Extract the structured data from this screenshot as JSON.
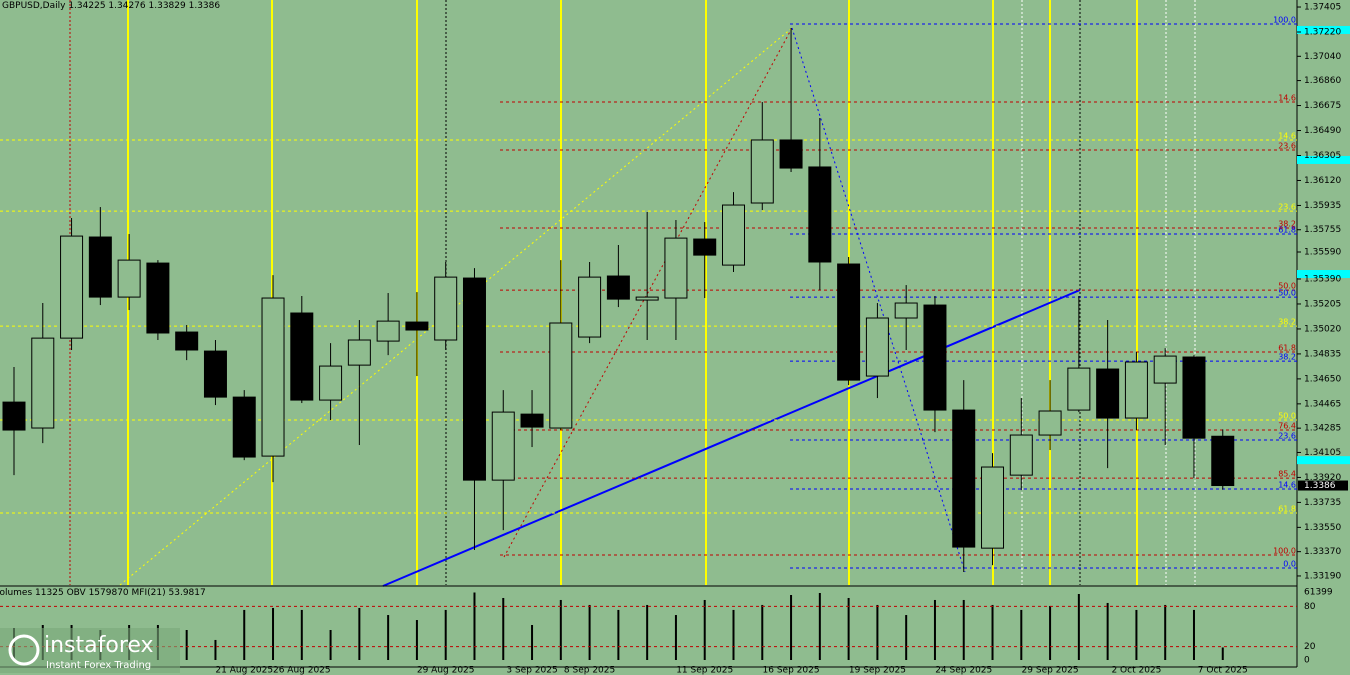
{
  "chart_data": {
    "type": "candlestick",
    "symbol": "GBPUSD,Daily",
    "categories": [
      null,
      null,
      null,
      null,
      null,
      null,
      null,
      null,
      "21 Aug 2025",
      null,
      "26 Aug 2025",
      null,
      null,
      null,
      null,
      "29 Aug 2025",
      null,
      null,
      "3 Sep 2025",
      null,
      "8 Sep 2025",
      null,
      null,
      null,
      "11 Sep 2025",
      null,
      null,
      "16 Sep 2025",
      null,
      null,
      "19 Sep 2025",
      null,
      null,
      "24 Sep 2025",
      null,
      null,
      "29 Sep 2025",
      null,
      null,
      "2 Oct 2025",
      null,
      null,
      "7 Oct 2025"
    ],
    "open": [
      1.34478,
      1.34286,
      1.34952,
      1.35701,
      1.35256,
      1.35508,
      1.34997,
      1.34856,
      1.34515,
      1.34078,
      1.35138,
      1.34493,
      1.34752,
      1.3493,
      1.35071,
      1.34938,
      1.35397,
      1.339,
      1.34389,
      1.34286,
      1.3496,
      1.35412,
      1.35234,
      1.35249,
      1.35686,
      1.35493,
      1.35953,
      1.3642,
      1.3622,
      1.35501,
      1.34671,
      1.35101,
      1.35197,
      1.34419,
      1.33396,
      1.33937,
      1.34234,
      1.34419,
      1.34723,
      1.3436,
      1.34619,
      1.34812,
      1.34225
    ],
    "high": [
      1.34738,
      1.35212,
      1.35842,
      1.35923,
      1.35723,
      1.3553,
      1.35049,
      1.34938,
      1.34567,
      1.35419,
      1.35264,
      1.34915,
      1.35086,
      1.35286,
      1.35293,
      1.35516,
      1.35471,
      1.34567,
      1.34567,
      1.3553,
      1.35516,
      1.35642,
      1.35886,
      1.35827,
      1.35812,
      1.36034,
      1.36701,
      1.3725,
      1.36583,
      1.35553,
      1.35212,
      1.35345,
      1.35264,
      1.34641,
      1.341,
      1.34508,
      1.34641,
      1.35264,
      1.35086,
      1.34849,
      1.34878,
      1.34826,
      1.34276
    ],
    "low": [
      1.33937,
      1.34174,
      1.34864,
      1.35197,
      1.3516,
      1.34938,
      1.34789,
      1.34456,
      1.34048,
      1.33885,
      1.34471,
      1.34345,
      1.3416,
      1.34826,
      1.34671,
      1.34864,
      1.33382,
      1.3353,
      1.34145,
      1.34271,
      1.34915,
      1.35182,
      1.34938,
      1.34938,
      1.35249,
      1.35442,
      1.35901,
      1.36183,
      1.35308,
      1.34604,
      1.34508,
      1.34864,
      1.34256,
      1.33219,
      1.3327,
      1.33826,
      1.34123,
      1.34404,
      1.33989,
      1.34271,
      1.3416,
      1.33915,
      1.33829
    ],
    "close": [
      1.34271,
      1.34952,
      1.35708,
      1.35256,
      1.3553,
      1.3499,
      1.34864,
      1.34515,
      1.34071,
      1.35249,
      1.34493,
      1.34745,
      1.34938,
      1.35078,
      1.35012,
      1.35404,
      1.339,
      1.34404,
      1.34293,
      1.35064,
      1.35404,
      1.35241,
      1.35256,
      1.35693,
      1.35567,
      1.35938,
      1.3642,
      1.36212,
      1.35516,
      1.34641,
      1.35101,
      1.35212,
      1.34419,
      1.33404,
      1.33997,
      1.34234,
      1.34412,
      1.3473,
      1.3436,
      1.34775,
      1.34819,
      1.34211,
      1.3386
    ],
    "ylim": [
      1.33123,
      1.37457
    ],
    "yticks": [
      1.37405,
      {
        "value": 1.3722,
        "label": "1.37220"
      },
      {
        "value": 1.3704,
        "label": "1.37040"
      },
      {
        "value": 1.3686,
        "label": "1.36860"
      },
      1.36675,
      {
        "value": 1.3649,
        "label": "1.36490"
      },
      1.36305,
      {
        "value": 1.3612,
        "label": "1.36120"
      },
      1.35935,
      1.35755,
      {
        "value": 1.3559,
        "label": "1.35590"
      },
      {
        "value": 1.3539,
        "label": "1.35390"
      },
      1.35205,
      {
        "value": 1.3502,
        "label": "1.35020"
      },
      1.34835,
      {
        "value": 1.3465,
        "label": "1.34650"
      },
      1.34465,
      1.34285,
      1.34105,
      {
        "value": 1.3392,
        "label": "1.33920"
      },
      1.33735,
      {
        "value": 1.3355,
        "label": "1.33550"
      },
      {
        "value": 1.3337,
        "label": "1.33370"
      },
      {
        "value": 1.3319,
        "label": "1.33190"
      }
    ],
    "alert_levels": [
      1.37235,
      1.36272,
      1.35427,
      1.34048
    ],
    "bull_color": "#8fbc8f",
    "bear_color": "#000000",
    "fib_levels": [
      {
        "label": "100.0",
        "value": 1.37279,
        "color": "#0000ff"
      },
      {
        "label": "14.6",
        "value": 1.36701,
        "color": "#c00000"
      },
      {
        "label": "14.6",
        "value": 1.3642,
        "color": "#ffff00"
      },
      {
        "label": "23.6",
        "value": 1.36346,
        "color": "#c00000"
      },
      {
        "label": "23.6",
        "value": 1.35893,
        "color": "#ffff00"
      },
      {
        "label": "38.2",
        "value": 1.35768,
        "color": "#c00000"
      },
      {
        "label": "61.8",
        "value": 1.35723,
        "color": "#0000ff"
      },
      {
        "label": "50.0",
        "value": 1.35308,
        "color": "#c00000"
      },
      {
        "label": "50.0",
        "value": 1.35256,
        "color": "#0000ff"
      },
      {
        "label": "38.2",
        "value": 1.35041,
        "color": "#ffff00"
      },
      {
        "label": "61.8",
        "value": 1.34849,
        "color": "#c00000"
      },
      {
        "label": "38.2",
        "value": 1.34782,
        "color": "#0000ff"
      },
      {
        "label": "50.0",
        "value": 1.34345,
        "color": "#ffff00"
      },
      {
        "label": "76.4",
        "value": 1.34271,
        "color": "#c00000"
      },
      {
        "label": "23.6",
        "value": 1.34197,
        "color": "#0000ff"
      },
      {
        "label": "85.4",
        "value": 1.33915,
        "color": "#c00000"
      },
      {
        "label": "14.6",
        "value": 1.33834,
        "color": "#0000ff"
      },
      {
        "label": "61.8",
        "value": 1.33656,
        "color": "#ffff00"
      },
      {
        "label": "100.0",
        "value": 1.33345,
        "color": "#c00000"
      },
      {
        "label": "0.0",
        "value": 1.33249,
        "color": "#0000ff"
      }
    ],
    "volume": {
      "label": "Volumes",
      "values": [
        28900,
        31600,
        31600,
        27100,
        31600,
        31600,
        27100,
        18100,
        45200,
        47000,
        45200,
        27100,
        47000,
        40600,
        36100,
        45200,
        61000,
        56000,
        31600,
        54200,
        49700,
        45200,
        49700,
        40600,
        54200,
        45200,
        49700,
        58700,
        60500,
        56000,
        49700,
        40600,
        54200,
        54200,
        49700,
        45200,
        48800,
        59600,
        51500,
        45200,
        49700,
        45200,
        11325
      ],
      "ylim": [
        0,
        61399
      ],
      "yticks": [
        61399
      ]
    },
    "obv": {
      "label": "OBV",
      "value": 1579870
    },
    "mfi": {
      "label": "MFI(21)",
      "value": 53.9817,
      "ylim": [
        0,
        100
      ],
      "yticks": [
        0,
        20,
        80
      ]
    },
    "watermark": {
      "brand": "instaforex",
      "tagline": "Instant Forex Trading"
    }
  }
}
